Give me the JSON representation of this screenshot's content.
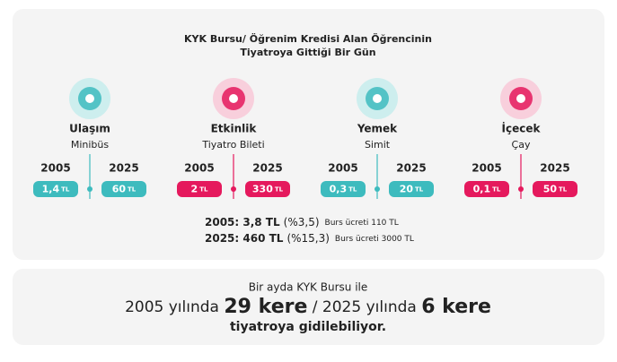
{
  "title_lines": [
    "KYK Bursu/ Öğrenim Kredisi Alan Öğrencinin",
    "Tiyatroya Gittiği Bir Gün"
  ],
  "years": [
    "2005",
    "2025"
  ],
  "currency": "TL",
  "items": [
    {
      "category": "Ulaşım",
      "item": "Minibüs",
      "prices": [
        "1,4",
        "60"
      ],
      "color": "#3dbbbe",
      "tint": "#cdeeee"
    },
    {
      "category": "Etkinlik",
      "item": "Tiyatro Bileti",
      "prices": [
        "2",
        "330"
      ],
      "color": "#e5195d",
      "tint": "#f8cfdc"
    },
    {
      "category": "Yemek",
      "item": "Simit",
      "prices": [
        "0,3",
        "20"
      ],
      "color": "#3dbbbe",
      "tint": "#cdeeee"
    },
    {
      "category": "İçecek",
      "item": "Çay",
      "prices": [
        "0,1",
        "50"
      ],
      "color": "#e5195d",
      "tint": "#f8cfdc"
    }
  ],
  "totals": [
    {
      "main": "2005: 3,8 TL",
      "share": "(%3,5)",
      "note": "Burs ücreti 110 TL"
    },
    {
      "main": "2025: 460 TL",
      "share": "(%15,3)",
      "note": "Burs ücreti 3000 TL"
    }
  ],
  "summary": {
    "line1": "Bir ayda KYK Bursu ile",
    "part1": "2005 yılında",
    "count1": "29 kere",
    "part2": "/ 2025 yılında",
    "count2": "6 kere",
    "line3": "tiyatroya gidilebiliyor."
  }
}
